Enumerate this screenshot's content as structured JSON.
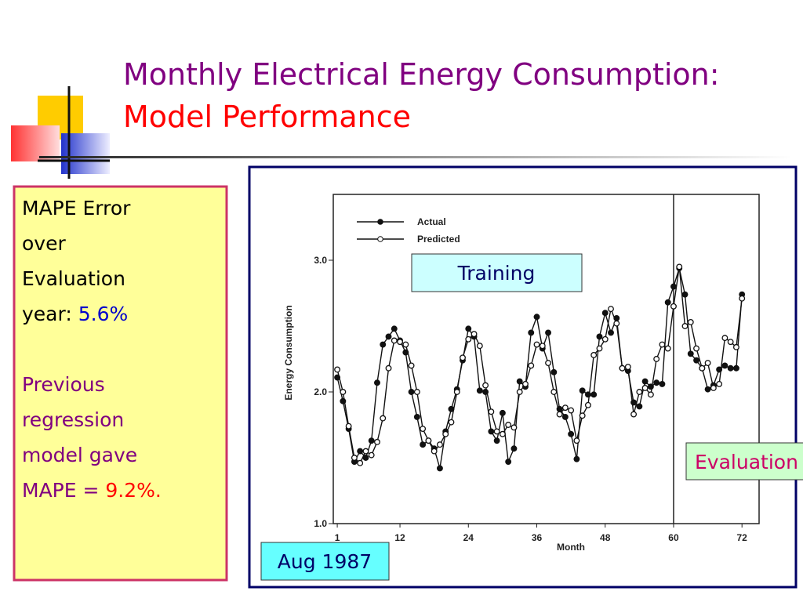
{
  "title": {
    "line1": "Monthly Electrical Energy Consumption:",
    "line2": "Model Performance"
  },
  "sidebar": {
    "lines": [
      "MAPE Error",
      "over",
      "Evaluation"
    ],
    "year": "year: ",
    "mape": "5.6%",
    "previous": [
      "Previous",
      "regression",
      "model gave"
    ],
    "prev_prefix": "MAPE = ",
    "prev_mape": "9.2%."
  },
  "labels": {
    "training": "Training",
    "evaluation": "Evaluation",
    "date": "Aug 1987"
  },
  "chart_data": {
    "type": "line",
    "xlabel": "Month",
    "ylabel": "Energy Consumption",
    "x": [
      1,
      2,
      3,
      4,
      5,
      6,
      7,
      8,
      9,
      10,
      11,
      12,
      13,
      14,
      15,
      16,
      17,
      18,
      19,
      20,
      21,
      22,
      23,
      24,
      25,
      26,
      27,
      28,
      29,
      30,
      31,
      32,
      33,
      34,
      35,
      36,
      37,
      38,
      39,
      40,
      41,
      42,
      43,
      44,
      45,
      46,
      47,
      48,
      49,
      50,
      51,
      52,
      53,
      54,
      55,
      56,
      57,
      58,
      59,
      60,
      61,
      62,
      63,
      64,
      65,
      66,
      67,
      68,
      69,
      70,
      71,
      72
    ],
    "series": [
      {
        "name": "Actual",
        "color": "#111111",
        "marker": "filled",
        "values": [
          2.11,
          1.93,
          1.72,
          1.47,
          1.55,
          1.5,
          1.63,
          2.07,
          2.36,
          2.42,
          2.48,
          2.39,
          2.3,
          2.0,
          1.81,
          1.6,
          1.63,
          1.57,
          1.42,
          1.7,
          1.87,
          2.02,
          2.24,
          2.48,
          2.42,
          2.01,
          2.0,
          1.7,
          1.63,
          1.84,
          1.47,
          1.57,
          2.08,
          2.04,
          2.45,
          2.57,
          2.33,
          2.45,
          2.15,
          1.87,
          1.81,
          1.68,
          1.49,
          2.01,
          1.98,
          1.98,
          2.42,
          2.6,
          2.45,
          2.56,
          2.18,
          2.16,
          1.92,
          1.89,
          2.08,
          2.04,
          2.07,
          2.06,
          2.68,
          2.8,
          2.94,
          2.74,
          2.29,
          2.24,
          2.18,
          2.02,
          2.05,
          2.17,
          2.2,
          2.18,
          2.18,
          2.74
        ]
      },
      {
        "name": "Predicted",
        "color": "#111111",
        "marker": "open",
        "values": [
          2.17,
          2.0,
          1.74,
          1.5,
          1.46,
          1.55,
          1.52,
          1.62,
          1.8,
          2.18,
          2.39,
          2.38,
          2.36,
          2.2,
          2.0,
          1.72,
          1.63,
          1.55,
          1.6,
          1.68,
          1.77,
          2.0,
          2.26,
          2.4,
          2.44,
          2.35,
          2.05,
          1.85,
          1.7,
          1.68,
          1.75,
          1.73,
          2.0,
          2.06,
          2.2,
          2.36,
          2.35,
          2.22,
          2.0,
          1.83,
          1.88,
          1.86,
          1.63,
          1.82,
          1.9,
          2.28,
          2.33,
          2.4,
          2.63,
          2.52,
          2.18,
          2.19,
          1.83,
          2.0,
          2.03,
          1.98,
          2.25,
          2.36,
          2.33,
          2.65,
          2.95,
          2.5,
          2.53,
          2.33,
          2.18,
          2.22,
          2.03,
          2.06,
          2.41,
          2.38,
          2.34,
          2.71
        ]
      }
    ],
    "xlim": [
      0.3,
      75
    ],
    "ylim": [
      1.0,
      3.5
    ],
    "xticks": [
      1,
      12,
      24,
      36,
      48,
      60,
      72
    ],
    "yticks": [
      {
        "value": 1.0,
        "label": "1.0"
      },
      {
        "value": 2.0,
        "label": "2.0"
      },
      {
        "value": 3.0,
        "label": "3.0"
      }
    ],
    "divider_x": 60
  }
}
